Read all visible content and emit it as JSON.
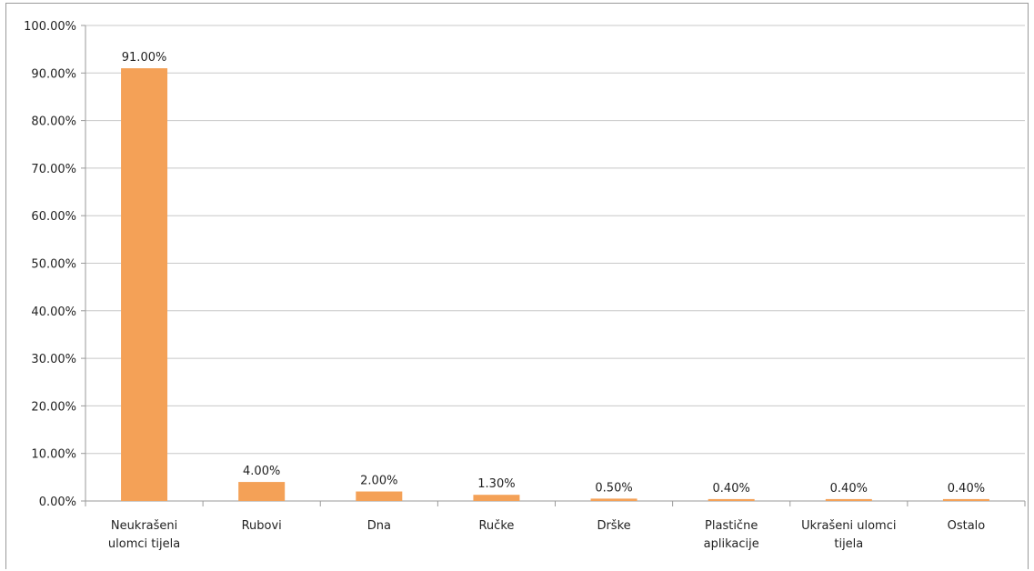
{
  "chart_data": {
    "type": "bar",
    "title": "",
    "xlabel": "",
    "ylabel": "",
    "ylim": [
      0,
      100
    ],
    "yticks": [
      "0.00%",
      "10.00%",
      "20.00%",
      "30.00%",
      "40.00%",
      "50.00%",
      "60.00%",
      "70.00%",
      "80.00%",
      "90.00%",
      "100.00%"
    ],
    "categories": [
      [
        "Neukrašeni",
        "ulomci tijela"
      ],
      [
        "Rubovi"
      ],
      [
        "Dna"
      ],
      [
        "Ručke"
      ],
      [
        "Drške"
      ],
      [
        "Plastične",
        "aplikacije"
      ],
      [
        "Ukrašeni ulomci",
        "tijela"
      ],
      [
        "Ostalo"
      ]
    ],
    "values": [
      91.0,
      4.0,
      2.0,
      1.3,
      0.5,
      0.4,
      0.4,
      0.4
    ],
    "data_labels": [
      "91.00%",
      "4.00%",
      "2.00%",
      "1.30%",
      "0.50%",
      "0.40%",
      "0.40%",
      "0.40%"
    ],
    "grid": true,
    "legend": "none",
    "colors": {
      "bar": "#f4a157",
      "grid": "#c8c8c8",
      "axis": "#9a9a9a"
    }
  }
}
